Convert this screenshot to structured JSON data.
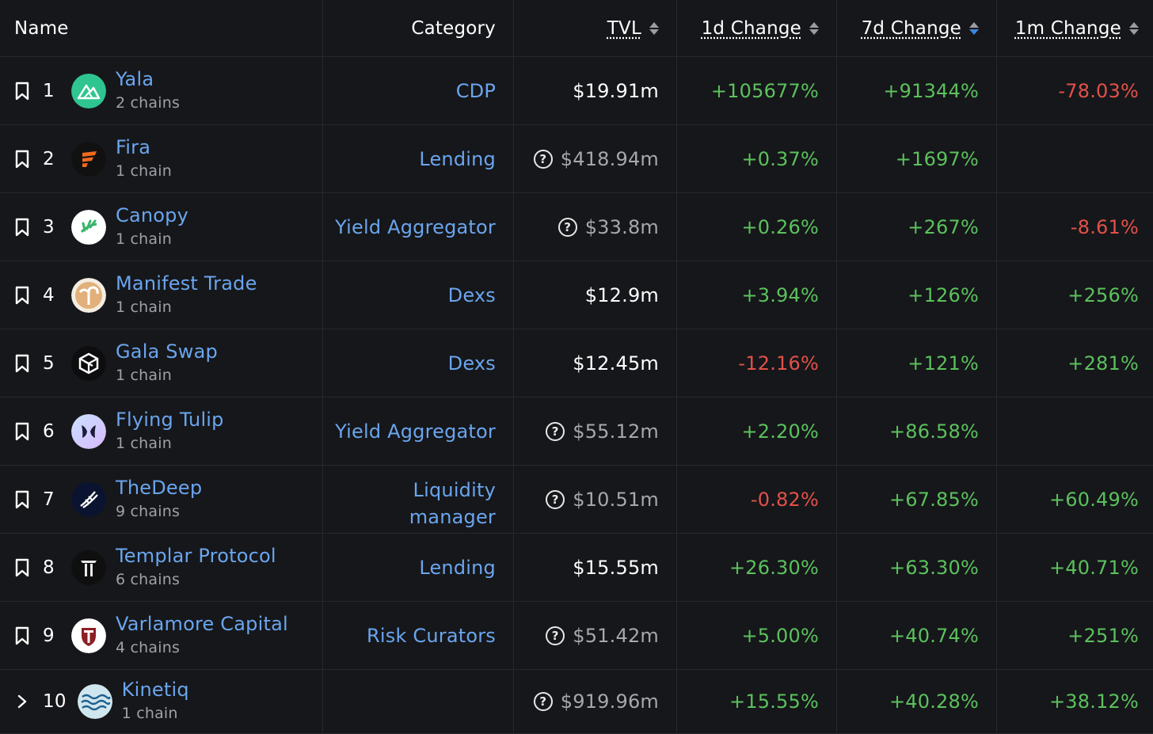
{
  "columns": {
    "name": "Name",
    "category": "Category",
    "tvl": "TVL",
    "change_1d": "1d Change",
    "change_7d": "7d Change",
    "change_1m": "1m Change"
  },
  "colors": {
    "background": "#16171a",
    "link": "#6aa5ee",
    "positive": "#5bc15d",
    "negative": "#e2514a",
    "sort_active": "#3d85e0"
  },
  "rows": [
    {
      "rank": "1",
      "name": "Yala",
      "chains": "2 chains",
      "category": "CDP",
      "tvl": "$19.91m",
      "tvl_estimated": false,
      "d1": "+105677%",
      "d7": "+91344%",
      "m1": "-78.03%",
      "logo": "yala-logo"
    },
    {
      "rank": "2",
      "name": "Fira",
      "chains": "1 chain",
      "category": "Lending",
      "tvl": "$418.94m",
      "tvl_estimated": true,
      "d1": "+0.37%",
      "d7": "+1697%",
      "m1": "",
      "logo": "fira-logo"
    },
    {
      "rank": "3",
      "name": "Canopy",
      "chains": "1 chain",
      "category": "Yield Aggregator",
      "tvl": "$33.8m",
      "tvl_estimated": true,
      "d1": "+0.26%",
      "d7": "+267%",
      "m1": "-8.61%",
      "logo": "canopy-logo"
    },
    {
      "rank": "4",
      "name": "Manifest Trade",
      "chains": "1 chain",
      "category": "Dexs",
      "tvl": "$12.9m",
      "tvl_estimated": false,
      "d1": "+3.94%",
      "d7": "+126%",
      "m1": "+256%",
      "logo": "manifest-logo"
    },
    {
      "rank": "5",
      "name": "Gala Swap",
      "chains": "1 chain",
      "category": "Dexs",
      "tvl": "$12.45m",
      "tvl_estimated": false,
      "d1": "-12.16%",
      "d7": "+121%",
      "m1": "+281%",
      "logo": "gala-logo"
    },
    {
      "rank": "6",
      "name": "Flying Tulip",
      "chains": "1 chain",
      "category": "Yield Aggregator",
      "tvl": "$55.12m",
      "tvl_estimated": true,
      "d1": "+2.20%",
      "d7": "+86.58%",
      "m1": "",
      "logo": "tulip-logo"
    },
    {
      "rank": "7",
      "name": "TheDeep",
      "chains": "9 chains",
      "category_line1": "Liquidity",
      "category_line2": "manager",
      "tvl": "$10.51m",
      "tvl_estimated": true,
      "d1": "-0.82%",
      "d7": "+67.85%",
      "m1": "+60.49%",
      "logo": "thedeep-logo"
    },
    {
      "rank": "8",
      "name": "Templar Protocol",
      "chains": "6 chains",
      "category": "Lending",
      "tvl": "$15.55m",
      "tvl_estimated": false,
      "d1": "+26.30%",
      "d7": "+63.30%",
      "m1": "+40.71%",
      "logo": "templar-logo"
    },
    {
      "rank": "9",
      "name": "Varlamore Capital",
      "chains": "4 chains",
      "category": "Risk Curators",
      "tvl": "$51.42m",
      "tvl_estimated": true,
      "d1": "+5.00%",
      "d7": "+40.74%",
      "m1": "+251%",
      "logo": "varlamore-logo"
    },
    {
      "rank": "10",
      "name": "Kinetiq",
      "chains": "1 chain",
      "category": "",
      "tvl": "$919.96m",
      "tvl_estimated": true,
      "d1": "+15.55%",
      "d7": "+40.28%",
      "m1": "+38.12%",
      "logo": "kinetiq-logo"
    }
  ],
  "icons": {
    "bookmark": "bookmark-icon",
    "expand": "chevron-right-icon",
    "info": "question-circle-icon",
    "sort": "sort-arrows-icon"
  }
}
